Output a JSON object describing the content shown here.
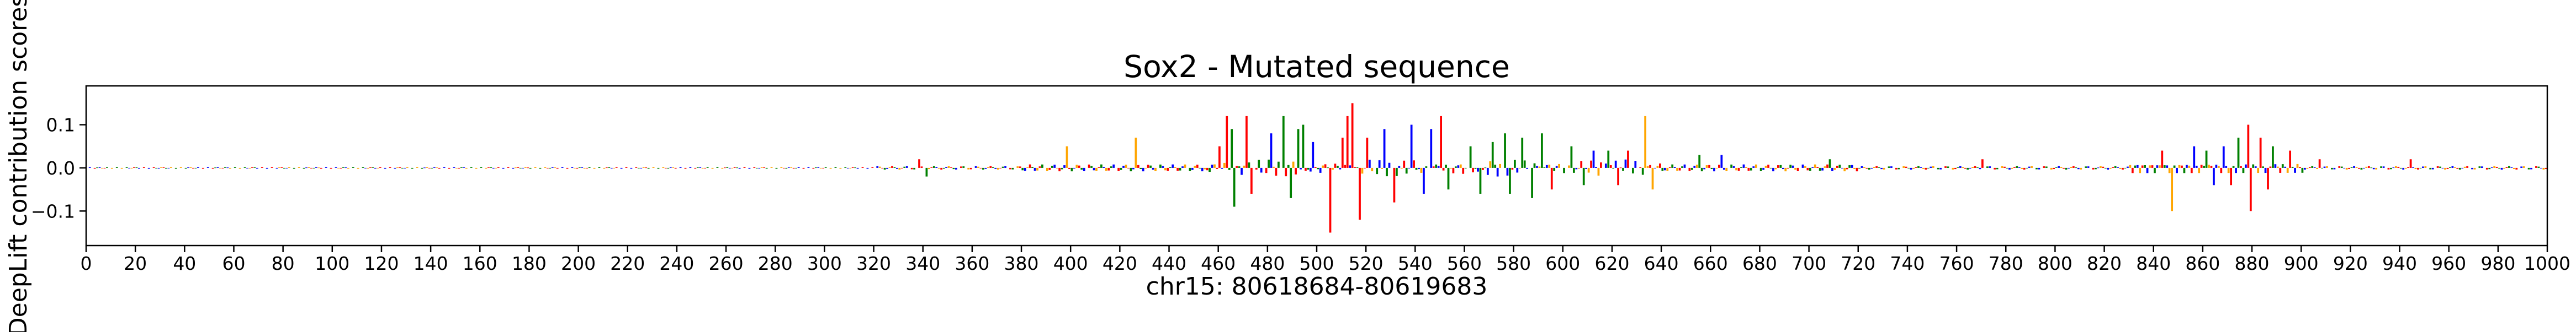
{
  "chart_data": {
    "type": "sequence-logo",
    "title": "Sox2 - Mutated sequence",
    "xlabel": "chr15: 80618684-80619683",
    "ylabel": "DeepLift contribution scores",
    "xlim": [
      0,
      1000
    ],
    "ylim": [
      -0.18,
      0.19
    ],
    "x_ticks": [
      0,
      20,
      40,
      60,
      80,
      100,
      120,
      140,
      160,
      180,
      200,
      220,
      240,
      260,
      280,
      300,
      320,
      340,
      360,
      380,
      400,
      420,
      440,
      460,
      480,
      500,
      520,
      540,
      560,
      580,
      600,
      620,
      640,
      660,
      680,
      700,
      720,
      740,
      760,
      780,
      800,
      820,
      840,
      860,
      880,
      900,
      920,
      940,
      960,
      980,
      1000
    ],
    "y_ticks": [
      {
        "value": 0.1,
        "label": "0.1"
      },
      {
        "value": 0.0,
        "label": "0.0"
      },
      {
        "value": -0.1,
        "label": "−0.1"
      }
    ],
    "base_colors": {
      "A": "#008000",
      "C": "#0000ff",
      "G": "#ffa500",
      "T": "#ff0000"
    },
    "grid": false,
    "legend": "none",
    "peaks": [
      {
        "x": 338,
        "value": 0.02,
        "base": "T"
      },
      {
        "x": 341,
        "value": -0.02,
        "base": "A"
      },
      {
        "x": 398,
        "value": 0.05,
        "base": "G"
      },
      {
        "x": 426,
        "value": 0.07,
        "base": "G"
      },
      {
        "x": 460,
        "value": 0.05,
        "base": "T"
      },
      {
        "x": 463,
        "value": 0.12,
        "base": "T"
      },
      {
        "x": 465,
        "value": 0.09,
        "base": "A"
      },
      {
        "x": 466,
        "value": -0.09,
        "base": "A"
      },
      {
        "x": 471,
        "value": 0.12,
        "base": "T"
      },
      {
        "x": 473,
        "value": -0.06,
        "base": "T"
      },
      {
        "x": 481,
        "value": 0.08,
        "base": "C"
      },
      {
        "x": 486,
        "value": 0.12,
        "base": "A"
      },
      {
        "x": 489,
        "value": -0.07,
        "base": "A"
      },
      {
        "x": 492,
        "value": 0.09,
        "base": "A"
      },
      {
        "x": 494,
        "value": 0.1,
        "base": "A"
      },
      {
        "x": 498,
        "value": 0.06,
        "base": "C"
      },
      {
        "x": 505,
        "value": -0.15,
        "base": "T"
      },
      {
        "x": 510,
        "value": 0.07,
        "base": "T"
      },
      {
        "x": 512,
        "value": 0.12,
        "base": "T"
      },
      {
        "x": 514,
        "value": 0.15,
        "base": "T"
      },
      {
        "x": 517,
        "value": -0.12,
        "base": "T"
      },
      {
        "x": 520,
        "value": 0.07,
        "base": "T"
      },
      {
        "x": 527,
        "value": 0.09,
        "base": "C"
      },
      {
        "x": 531,
        "value": -0.08,
        "base": "T"
      },
      {
        "x": 538,
        "value": 0.1,
        "base": "C"
      },
      {
        "x": 543,
        "value": -0.06,
        "base": "C"
      },
      {
        "x": 546,
        "value": 0.09,
        "base": "C"
      },
      {
        "x": 550,
        "value": 0.12,
        "base": "T"
      },
      {
        "x": 553,
        "value": -0.05,
        "base": "A"
      },
      {
        "x": 562,
        "value": 0.05,
        "base": "A"
      },
      {
        "x": 566,
        "value": -0.06,
        "base": "A"
      },
      {
        "x": 571,
        "value": 0.06,
        "base": "A"
      },
      {
        "x": 576,
        "value": 0.08,
        "base": "A"
      },
      {
        "x": 578,
        "value": -0.06,
        "base": "A"
      },
      {
        "x": 583,
        "value": 0.07,
        "base": "A"
      },
      {
        "x": 587,
        "value": -0.07,
        "base": "A"
      },
      {
        "x": 591,
        "value": 0.08,
        "base": "A"
      },
      {
        "x": 595,
        "value": -0.05,
        "base": "T"
      },
      {
        "x": 603,
        "value": 0.05,
        "base": "A"
      },
      {
        "x": 608,
        "value": -0.04,
        "base": "A"
      },
      {
        "x": 612,
        "value": 0.04,
        "base": "C"
      },
      {
        "x": 618,
        "value": 0.04,
        "base": "A"
      },
      {
        "x": 622,
        "value": -0.04,
        "base": "T"
      },
      {
        "x": 626,
        "value": 0.04,
        "base": "T"
      },
      {
        "x": 633,
        "value": 0.12,
        "base": "G"
      },
      {
        "x": 636,
        "value": -0.05,
        "base": "G"
      },
      {
        "x": 655,
        "value": 0.03,
        "base": "A"
      },
      {
        "x": 664,
        "value": 0.03,
        "base": "C"
      },
      {
        "x": 708,
        "value": 0.02,
        "base": "A"
      },
      {
        "x": 770,
        "value": 0.02,
        "base": "T"
      },
      {
        "x": 843,
        "value": 0.04,
        "base": "T"
      },
      {
        "x": 847,
        "value": -0.1,
        "base": "G"
      },
      {
        "x": 856,
        "value": 0.05,
        "base": "C"
      },
      {
        "x": 861,
        "value": 0.04,
        "base": "A"
      },
      {
        "x": 864,
        "value": -0.04,
        "base": "C"
      },
      {
        "x": 868,
        "value": 0.05,
        "base": "C"
      },
      {
        "x": 871,
        "value": -0.04,
        "base": "T"
      },
      {
        "x": 874,
        "value": 0.07,
        "base": "A"
      },
      {
        "x": 878,
        "value": 0.1,
        "base": "T"
      },
      {
        "x": 879,
        "value": -0.1,
        "base": "T"
      },
      {
        "x": 883,
        "value": 0.07,
        "base": "T"
      },
      {
        "x": 886,
        "value": -0.05,
        "base": "T"
      },
      {
        "x": 888,
        "value": 0.05,
        "base": "A"
      },
      {
        "x": 895,
        "value": 0.04,
        "base": "T"
      },
      {
        "x": 907,
        "value": 0.02,
        "base": "T"
      },
      {
        "x": 944,
        "value": 0.02,
        "base": "T"
      }
    ]
  }
}
